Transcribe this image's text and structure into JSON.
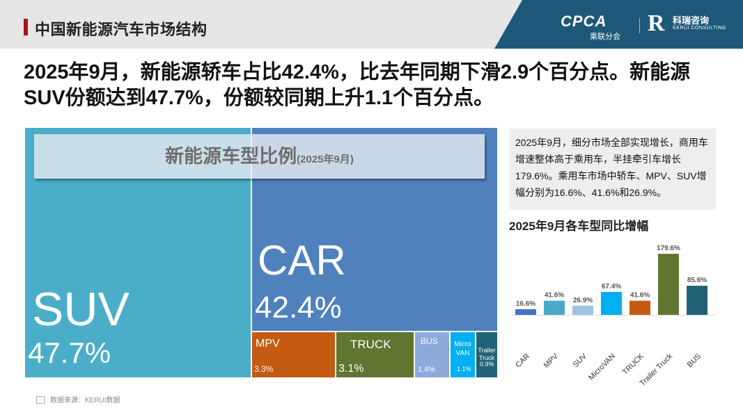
{
  "header": {
    "title": "中国新能源汽车市场结构",
    "logo_cpca": "CPCA",
    "logo_cpca_sub": "乘联分会",
    "logo_kr_cn": "科瑞咨询",
    "logo_kr_en": "KERUI CONSULTING"
  },
  "headline": "2025年9月，新能源轿车占比42.4%，比去年同期下滑2.9个百分点。新能源SUV份额达到47.7%，份额较同期上升1.1个百分点。",
  "note": "2025年9月，细分市场全部实现增长，商用车增速整体高于乘用车，半挂牵引车增长179.6%。乘用车市场中轿车、MPV、SUV增幅分别为16.6%、41.6%和26.9%。",
  "source": "数据来源：KERUI数据",
  "colors": {
    "suv": "#4aaec8",
    "car": "#4f81bd",
    "mpv": "#c55a11",
    "truck": "#5f7530",
    "bus": "#8eaadb",
    "microvan": "#00b0f0",
    "trailer": "#226277",
    "bar_car": "#4472c4",
    "bar_mpv": "#4aa8c8",
    "bar_suv": "#9dc3e6",
    "bar_microvan": "#00b0f0",
    "bar_truck": "#c55a11",
    "bar_trailer": "#5f7530",
    "bar_bus": "#226277"
  },
  "chart_data": [
    {
      "type": "treemap",
      "title": "新能源车型比例",
      "subtitle": "(2025年9月)",
      "items": [
        {
          "key": "suv",
          "label": "SUV",
          "value_label": "47.7%",
          "value": 47.7
        },
        {
          "key": "car",
          "label": "CAR",
          "value_label": "42.4%",
          "value": 42.4
        },
        {
          "key": "mpv",
          "label": "MPV",
          "value_label": "3.3%",
          "value": 3.3
        },
        {
          "key": "truck",
          "label": "TRUCK",
          "value_label": "3.1%",
          "value": 3.1
        },
        {
          "key": "bus",
          "label": "BUS",
          "value_label": "1.4%",
          "value": 1.4
        },
        {
          "key": "microvan",
          "label": "Micro VAN",
          "value_label": "1.1%",
          "value": 1.1
        },
        {
          "key": "trailer",
          "label": "Trailer Truck",
          "value_label": "0.9%",
          "value": 0.9
        }
      ]
    },
    {
      "type": "bar",
      "title": "2025年9月各车型同比增幅",
      "categories": [
        "CAR",
        "MPV",
        "SUV",
        "MicroVAN",
        "TRUCK",
        "Trailer Truck",
        "BUS"
      ],
      "values": [
        16.6,
        41.6,
        26.9,
        67.4,
        41.6,
        179.6,
        85.6
      ],
      "value_labels": [
        "16.6%",
        "41.6%",
        "26.9%",
        "67.4%",
        "41.6%",
        "179.6%",
        "85.6%"
      ],
      "colors": [
        "bar_car",
        "bar_mpv",
        "bar_suv",
        "bar_microvan",
        "bar_truck",
        "bar_trailer",
        "bar_bus"
      ],
      "ylim": [
        0,
        180
      ]
    }
  ]
}
